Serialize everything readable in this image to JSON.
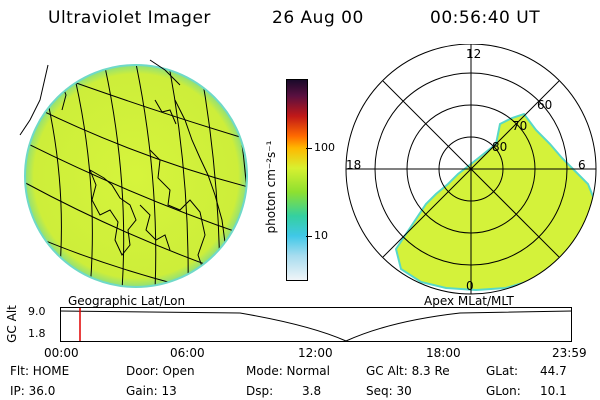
{
  "header": {
    "instrument": "Ultraviolet Imager",
    "date": "26 Aug 00",
    "time": "00:56:40 UT"
  },
  "left_panel": {
    "label": "Geographic Lat/Lon"
  },
  "right_panel": {
    "label": "Apex MLat/MLT",
    "mlt_labels": {
      "top": "12",
      "left": "18",
      "right": "6",
      "bottom": "0"
    },
    "lat_labels": [
      "60",
      "70",
      "80"
    ]
  },
  "colorbar": {
    "unit": "photon cm⁻²s⁻¹",
    "ticks": [
      "100",
      "10"
    ]
  },
  "timeline": {
    "axis_label": "GC Alt",
    "y_ticks": [
      "9.0",
      "1.8"
    ],
    "x_ticks": [
      "00:00",
      "06:00",
      "12:00",
      "18:00",
      "23:59"
    ],
    "marker_time": "00:56:40"
  },
  "footer": {
    "flt": "Flt: HOME",
    "ip": "IP: 36.0",
    "door": "Door: Open",
    "gain": "Gain: 13",
    "mode": "Mode: Normal",
    "dsp_label": "Dsp:",
    "dsp_value": "3.8",
    "gc_alt": "GC Alt: 8.3 Re",
    "seq": "Seq: 30",
    "glat_label": "GLat:",
    "glat_value": "44.7",
    "glon_label": "GLon:",
    "glon_value": "10.1"
  },
  "colors": {
    "emission": "#d4f23a",
    "emission_edge": "#58d8c8",
    "marker": "#e00000"
  }
}
